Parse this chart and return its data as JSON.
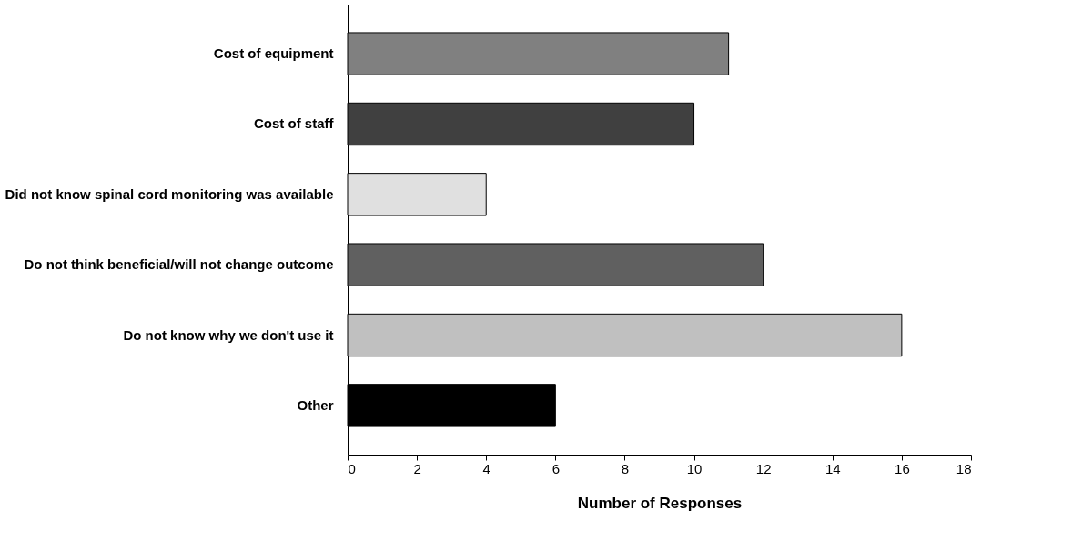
{
  "chart_data": {
    "type": "bar",
    "orientation": "horizontal",
    "xlabel": "Number of Responses",
    "categories": [
      "Cost of equipment",
      "Cost of staff",
      "Did not know spinal cord monitoring was available",
      "Do not think beneficial/will not change outcome",
      "Do not know why we don't use it",
      "Other"
    ],
    "values": [
      11,
      10,
      4,
      12,
      16,
      6
    ],
    "colors": [
      "#808080",
      "#404040",
      "#e0e0e0",
      "#606060",
      "#c0c0c0",
      "#000000"
    ],
    "xlim": [
      0,
      18
    ],
    "xticks": [
      0,
      2,
      4,
      6,
      8,
      10,
      12,
      14,
      16,
      18
    ],
    "grid": false
  }
}
